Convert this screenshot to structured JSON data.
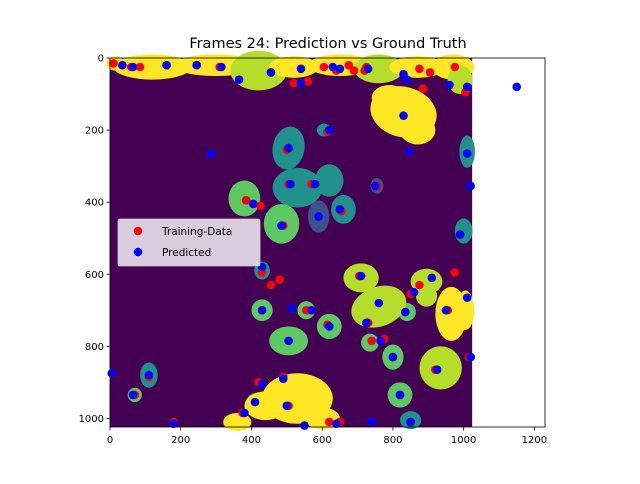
{
  "chart_data": {
    "type": "scatter",
    "title": "Frames 24: Prediction vs Ground Truth",
    "xlabel": "",
    "ylabel": "",
    "xlim": [
      0,
      1230
    ],
    "ylim": [
      1024,
      0
    ],
    "xticks": [
      0,
      200,
      400,
      600,
      800,
      1000,
      1200
    ],
    "yticks": [
      0,
      200,
      400,
      600,
      800,
      1000
    ],
    "grid": false,
    "legend_position": "center-left",
    "background_image": {
      "description": "segmentation mask (viridis colormap)",
      "x_extent": [
        0,
        1024
      ],
      "y_extent": [
        1024,
        0
      ],
      "colors": {
        "background": "#440154",
        "dark_blue": "#3b528b",
        "teal": "#21918c",
        "green": "#5ec962",
        "lime": "#b5de2b",
        "yellow": "#fde725"
      }
    },
    "series": [
      {
        "name": "Training-Data",
        "color": "#ff0000",
        "points": [
          [
            10,
            15
          ],
          [
            60,
            25
          ],
          [
            85,
            25
          ],
          [
            160,
            20
          ],
          [
            245,
            20
          ],
          [
            310,
            25
          ],
          [
            455,
            40
          ],
          [
            520,
            70
          ],
          [
            560,
            65
          ],
          [
            605,
            25
          ],
          [
            640,
            35
          ],
          [
            675,
            20
          ],
          [
            690,
            35
          ],
          [
            720,
            35
          ],
          [
            725,
            25
          ],
          [
            875,
            30
          ],
          [
            885,
            85
          ],
          [
            905,
            40
          ],
          [
            975,
            25
          ],
          [
            1005,
            95
          ],
          [
            615,
            205
          ],
          [
            500,
            255
          ],
          [
            285,
            265
          ],
          [
            845,
            260
          ],
          [
            755,
            355
          ],
          [
            505,
            350
          ],
          [
            570,
            350
          ],
          [
            385,
            395
          ],
          [
            425,
            410
          ],
          [
            655,
            425
          ],
          [
            490,
            465
          ],
          [
            430,
            595
          ],
          [
            455,
            630
          ],
          [
            480,
            615
          ],
          [
            705,
            605
          ],
          [
            430,
            700
          ],
          [
            555,
            700
          ],
          [
            615,
            740
          ],
          [
            730,
            735
          ],
          [
            740,
            785
          ],
          [
            775,
            780
          ],
          [
            850,
            655
          ],
          [
            875,
            630
          ],
          [
            835,
            705
          ],
          [
            955,
            700
          ],
          [
            975,
            595
          ],
          [
            1015,
            830
          ],
          [
            110,
            885
          ],
          [
            70,
            935
          ],
          [
            375,
            985
          ],
          [
            420,
            900
          ],
          [
            490,
            885
          ],
          [
            505,
            965
          ],
          [
            620,
            1010
          ],
          [
            650,
            1010
          ],
          [
            740,
            1010
          ],
          [
            180,
            1010
          ],
          [
            800,
            830
          ],
          [
            820,
            935
          ],
          [
            920,
            865
          ],
          [
            850,
            1010
          ]
        ]
      },
      {
        "name": "Predicted",
        "color": "#0000ff",
        "points": [
          [
            35,
            20
          ],
          [
            65,
            25
          ],
          [
            160,
            20
          ],
          [
            245,
            20
          ],
          [
            315,
            25
          ],
          [
            365,
            60
          ],
          [
            455,
            40
          ],
          [
            540,
            70
          ],
          [
            540,
            30
          ],
          [
            630,
            25
          ],
          [
            650,
            30
          ],
          [
            730,
            30
          ],
          [
            830,
            45
          ],
          [
            840,
            60
          ],
          [
            960,
            75
          ],
          [
            1010,
            80
          ],
          [
            1150,
            80
          ],
          [
            830,
            160
          ],
          [
            620,
            200
          ],
          [
            505,
            250
          ],
          [
            285,
            265
          ],
          [
            845,
            260
          ],
          [
            1010,
            265
          ],
          [
            750,
            355
          ],
          [
            510,
            350
          ],
          [
            580,
            350
          ],
          [
            1020,
            355
          ],
          [
            405,
            405
          ],
          [
            650,
            420
          ],
          [
            485,
            465
          ],
          [
            590,
            440
          ],
          [
            990,
            490
          ],
          [
            430,
            580
          ],
          [
            710,
            605
          ],
          [
            910,
            610
          ],
          [
            860,
            650
          ],
          [
            760,
            680
          ],
          [
            1010,
            665
          ],
          [
            430,
            700
          ],
          [
            515,
            695
          ],
          [
            570,
            700
          ],
          [
            620,
            745
          ],
          [
            725,
            735
          ],
          [
            835,
            705
          ],
          [
            950,
            700
          ],
          [
            765,
            785
          ],
          [
            505,
            785
          ],
          [
            800,
            830
          ],
          [
            1020,
            830
          ],
          [
            5,
            875
          ],
          [
            110,
            880
          ],
          [
            925,
            865
          ],
          [
            65,
            935
          ],
          [
            380,
            985
          ],
          [
            430,
            905
          ],
          [
            410,
            955
          ],
          [
            490,
            890
          ],
          [
            500,
            965
          ],
          [
            640,
            1015
          ],
          [
            550,
            1020
          ],
          [
            820,
            935
          ],
          [
            740,
            1010
          ],
          [
            850,
            1010
          ],
          [
            180,
            1015
          ]
        ]
      }
    ]
  }
}
